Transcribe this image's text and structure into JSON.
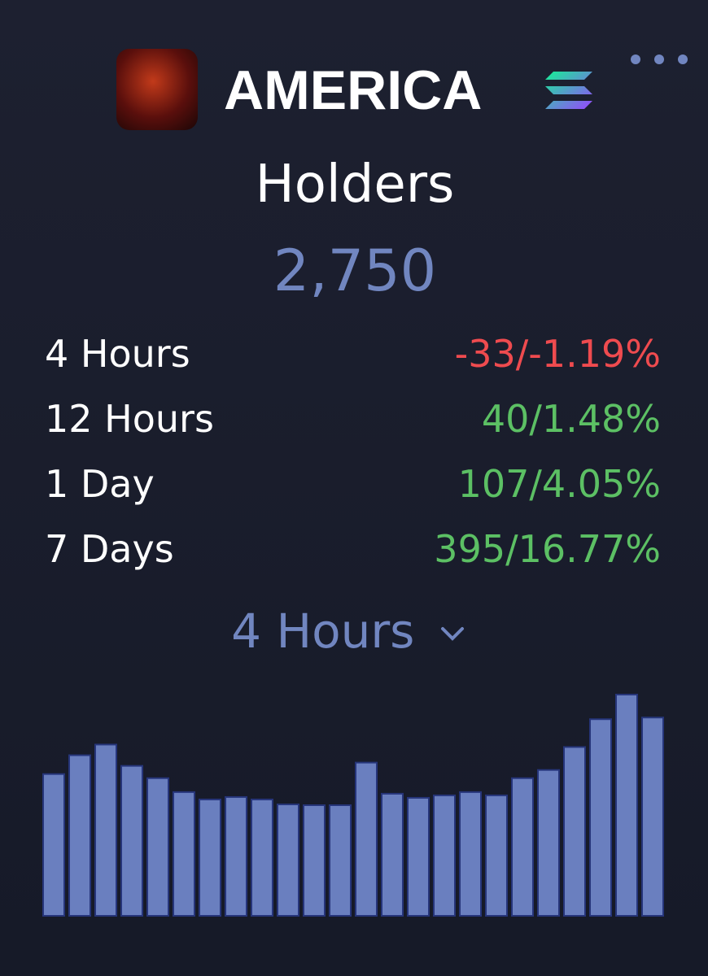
{
  "header": {
    "title": "AMERICA"
  },
  "metric": {
    "label": "Holders",
    "value": "2,750"
  },
  "periods": [
    {
      "label": "4 Hours",
      "change": "-33/-1.19%",
      "color": "#ef4b4f"
    },
    {
      "label": "12 Hours",
      "change": "40/1.48%",
      "color": "#5cc064"
    },
    {
      "label": "1 Day",
      "change": "107/4.05%",
      "color": "#5cc064"
    },
    {
      "label": "7 Days",
      "change": "395/16.77%",
      "color": "#5cc064"
    }
  ],
  "selector": {
    "label": "4 Hours"
  },
  "chart_data": {
    "type": "bar",
    "color": "#6a7fbf",
    "values": [
      173,
      196,
      209,
      183,
      168,
      151,
      142,
      145,
      142,
      136,
      135,
      135,
      187,
      149,
      144,
      147,
      151,
      147,
      168,
      178,
      206,
      240,
      270,
      242
    ],
    "ylim": [
      0,
      270
    ]
  }
}
